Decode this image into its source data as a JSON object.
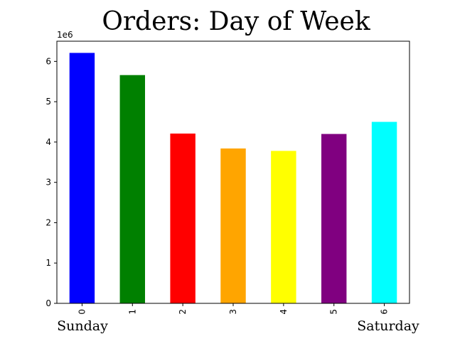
{
  "chart_data": {
    "type": "bar",
    "title": "Orders: Day of Week",
    "categories": [
      "0",
      "1",
      "2",
      "3",
      "4",
      "5",
      "6"
    ],
    "values": [
      6210000,
      5660000,
      4210000,
      3840000,
      3780000,
      4200000,
      4500000
    ],
    "colors": [
      "#0000ff",
      "#008000",
      "#ff0000",
      "#ffa500",
      "#ffff00",
      "#800080",
      "#00ffff"
    ],
    "ylim": [
      0,
      6500000
    ],
    "yticks": [
      0,
      1,
      2,
      3,
      4,
      5,
      6
    ],
    "y_scale_label": "1e6",
    "xtick_rotation": "vertical",
    "grid": false,
    "annotations": {
      "first_day": "Sunday",
      "last_day": "Saturday"
    }
  }
}
